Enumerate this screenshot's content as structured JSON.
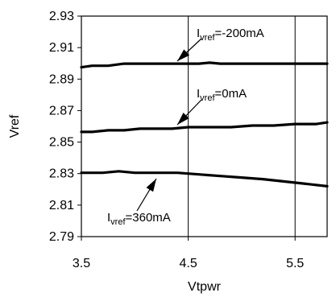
{
  "chart_data": {
    "type": "line",
    "xlabel": "Vtpwr",
    "ylabel": "Vref",
    "xlim": [
      3.5,
      5.8
    ],
    "ylim": [
      2.79,
      2.93
    ],
    "x_ticks": [
      3.5,
      4.5,
      5.5
    ],
    "x_tick_labels": [
      "3.5",
      "4.5",
      "5.5"
    ],
    "y_ticks": [
      2.79,
      2.81,
      2.83,
      2.85,
      2.87,
      2.89,
      2.91,
      2.93
    ],
    "y_tick_labels": [
      "2.79",
      "2.81",
      "2.83",
      "2.85",
      "2.87",
      "2.89",
      "2.91",
      "2.93"
    ],
    "grid": "vertical",
    "legend": "none",
    "series": [
      {
        "name": "Ivref=-200mA",
        "x": [
          3.5,
          3.6,
          3.75,
          3.9,
          4.0,
          4.2,
          4.4,
          4.6,
          4.7,
          4.8,
          5.0,
          5.2,
          5.4,
          5.6,
          5.8
        ],
        "y": [
          2.8975,
          2.8985,
          2.8985,
          2.8998,
          2.8998,
          2.8998,
          2.8998,
          2.8998,
          2.9004,
          2.8998,
          2.8998,
          2.8998,
          2.8998,
          2.8998,
          2.8998
        ]
      },
      {
        "name": "Ivref=0mA",
        "x": [
          3.5,
          3.6,
          3.75,
          3.9,
          4.05,
          4.2,
          4.35,
          4.5,
          4.7,
          4.9,
          5.1,
          5.3,
          5.5,
          5.7,
          5.8
        ],
        "y": [
          2.8565,
          2.8565,
          2.8575,
          2.8575,
          2.8585,
          2.8585,
          2.8585,
          2.8595,
          2.8595,
          2.8595,
          2.8605,
          2.8605,
          2.8615,
          2.8615,
          2.8625
        ]
      },
      {
        "name": "Ivref=360mA",
        "x": [
          3.5,
          3.7,
          3.85,
          4.0,
          4.2,
          4.4,
          4.6,
          4.8,
          5.0,
          5.2,
          5.4,
          5.6,
          5.8
        ],
        "y": [
          2.8305,
          2.8305,
          2.8315,
          2.8305,
          2.8305,
          2.8305,
          2.8295,
          2.8285,
          2.8275,
          2.8265,
          2.825,
          2.8235,
          2.822
        ]
      }
    ],
    "annotations": [
      {
        "main": "I",
        "sub": "vref",
        "rest": "=-200mA",
        "series": 0
      },
      {
        "main": "I",
        "sub": "vref",
        "rest": "=0mA",
        "series": 1
      },
      {
        "main": "I",
        "sub": "vref",
        "rest": "=360mA",
        "series": 2
      }
    ]
  }
}
